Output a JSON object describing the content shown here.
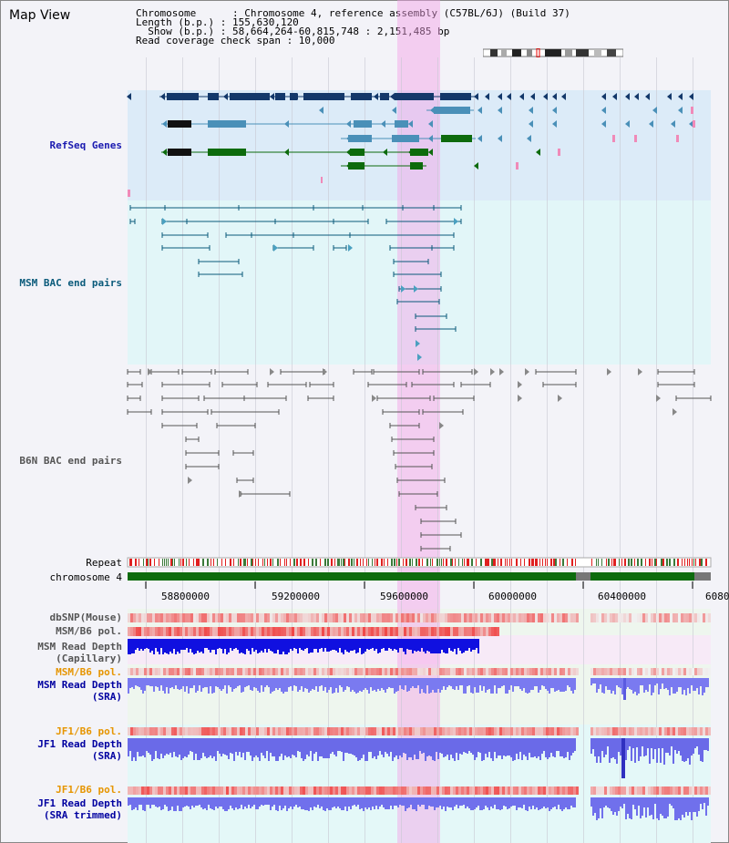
{
  "window": {
    "title": "Map View"
  },
  "info": {
    "line1": "Chromosome      : Chromosome 4, reference assembly (C57BL/6J) (Build 37)",
    "line2": "Length (b.p.) : 155,630,120",
    "line3": "  Show (b.p.) : 58,664,264-60,815,748 : 2,151,485 bp",
    "line4": "Read coverage check span : 10,000"
  },
  "tracks": {
    "refseq": "RefSeq Genes",
    "msm_bac": "MSM BAC end pairs",
    "b6n_bac": "B6N BAC end pairs",
    "repeat": "Repeat",
    "chromosome": "chromosome 4",
    "dbsnp": "dbSNP(Mouse)",
    "msm_b6_pol_1": "MSM/B6 pol.",
    "msm_depth_cap_1": "MSM Read Depth",
    "msm_depth_cap_2": "(Capillary)",
    "msm_b6_pol_2": "MSM/B6 pol.",
    "msm_depth_sra_1": "MSM Read Depth",
    "msm_depth_sra_2": "(SRA)",
    "jf1_b6_pol_1": "JF1/B6 pol.",
    "jf1_depth_sra_1": "JF1 Read Depth",
    "jf1_depth_sra_2": "(SRA)",
    "jf1_b6_pol_2": "JF1/B6 pol.",
    "jf1_depth_trim_1": "JF1 Read Depth",
    "jf1_depth_trim_2": "(SRA trimmed)"
  },
  "axis": {
    "ticks": [
      "58800000",
      "59200000",
      "59600000",
      "60000000",
      "60400000",
      "6080"
    ]
  },
  "colors": {
    "highlight": "#f5a0e6",
    "refseq_bg": "#dcebf8",
    "msm_bg": "#e2f6f8",
    "navy": "#13386a",
    "steel": "#4a90b8",
    "green": "#0d6b0d",
    "red": "#e02020",
    "blue": "#2020e0",
    "orange": "#e69500",
    "label_blue": "#0000a0",
    "label_teal": "#0a5a7a"
  }
}
